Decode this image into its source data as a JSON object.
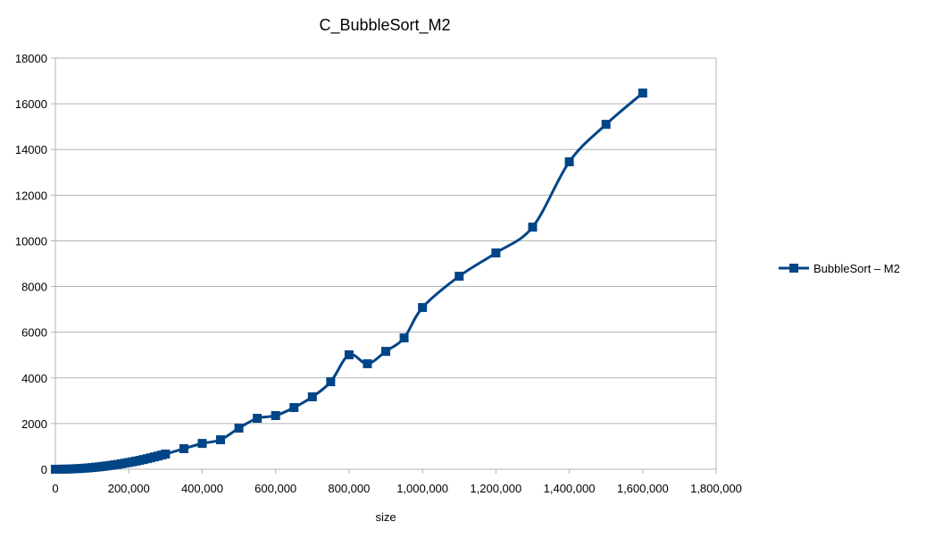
{
  "chart_data": {
    "type": "line",
    "title": "C_BubbleSort_M2",
    "xlabel": "size",
    "ylabel": "",
    "xlim": [
      0,
      1800000
    ],
    "ylim": [
      0,
      18000
    ],
    "x_ticks": [
      0,
      200000,
      400000,
      600000,
      800000,
      1000000,
      1200000,
      1400000,
      1600000,
      1800000
    ],
    "x_tick_labels": [
      "0",
      "200,000",
      "400,000",
      "600,000",
      "800,000",
      "1,000,000",
      "1,200,000",
      "1,400,000",
      "1,600,000",
      "1,800,000"
    ],
    "y_ticks": [
      0,
      2000,
      4000,
      6000,
      8000,
      10000,
      12000,
      14000,
      16000,
      18000
    ],
    "y_tick_labels": [
      "0",
      "2000",
      "4000",
      "6000",
      "8000",
      "10000",
      "12000",
      "14000",
      "16000",
      "18000"
    ],
    "grid": "horizontal",
    "legend_position": "right",
    "smooth": true,
    "marker": "square",
    "series": [
      {
        "name": "BubbleSort – M2",
        "color": "#004586",
        "x": [
          0,
          10000,
          20000,
          30000,
          40000,
          50000,
          60000,
          70000,
          80000,
          90000,
          100000,
          110000,
          120000,
          130000,
          140000,
          150000,
          160000,
          170000,
          180000,
          190000,
          200000,
          210000,
          220000,
          230000,
          240000,
          250000,
          260000,
          270000,
          280000,
          290000,
          300000,
          350000,
          400000,
          450000,
          500000,
          550000,
          600000,
          650000,
          700000,
          750000,
          800000,
          850000,
          900000,
          950000,
          1000000,
          1100000,
          1200000,
          1300000,
          1400000,
          1500000,
          1600000
        ],
        "y": [
          0,
          1,
          3,
          7,
          12,
          19,
          27,
          36,
          47,
          60,
          74,
          90,
          107,
          125,
          145,
          167,
          189,
          214,
          240,
          267,
          296,
          326,
          358,
          391,
          426,
          463,
          500,
          540,
          580,
          622,
          665,
          900,
          1130,
          1290,
          1800,
          2230,
          2350,
          2700,
          3170,
          3830,
          5010,
          4620,
          5160,
          5750,
          7080,
          8450,
          9470,
          10600,
          13460,
          15100,
          16470
        ]
      }
    ]
  }
}
